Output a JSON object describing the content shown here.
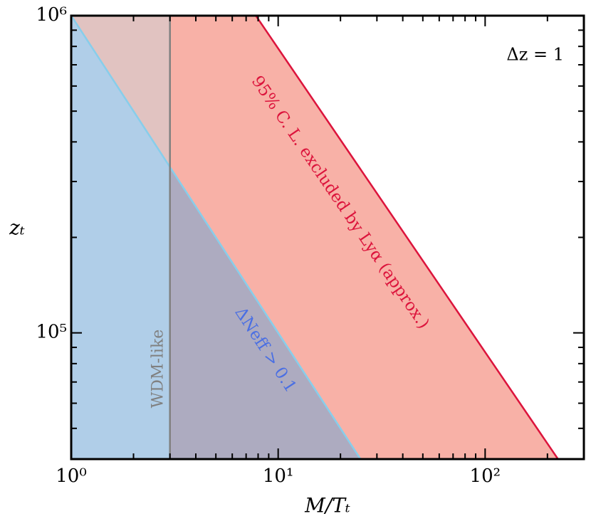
{
  "chart_data": {
    "type": "line",
    "xlabel": "M/Tₜ",
    "ylabel": "zₜ",
    "xscale": "log",
    "yscale": "log",
    "xlim": [
      1,
      300
    ],
    "ylim": [
      40000,
      1000000
    ],
    "xticks": [
      {
        "value": 1,
        "label": "10⁰"
      },
      {
        "value": 10,
        "label": "10¹"
      },
      {
        "value": 100,
        "label": "10²"
      }
    ],
    "yticks": [
      {
        "value": 100000,
        "label": "10⁵"
      },
      {
        "value": 1000000,
        "label": "10⁶"
      }
    ],
    "xminorticks": [
      2,
      3,
      4,
      5,
      6,
      7,
      8,
      9,
      20,
      30,
      40,
      50,
      60,
      70,
      80,
      90,
      200,
      300
    ],
    "yminorticks": [
      50000,
      60000,
      70000,
      80000,
      90000,
      200000,
      300000,
      400000,
      500000,
      600000,
      700000,
      800000,
      900000
    ],
    "series": [
      {
        "name": "ΔNeff > 0.1",
        "color": "#87ceeb",
        "fill": "#6fa6d6",
        "x": [
          1,
          25
        ],
        "values": [
          1000000,
          40000
        ]
      },
      {
        "name": "95% C. L. excluded by Lyα (approx.)",
        "color": "#dc143c",
        "fill": "#f8b1a7",
        "x": [
          7.8,
          225
        ],
        "values": [
          1000000,
          40000
        ]
      },
      {
        "name": "WDM-like",
        "color": "#808080",
        "x": [
          3,
          3
        ],
        "values": [
          40000,
          1000000
        ]
      }
    ],
    "annotation": "Δz = 1"
  }
}
